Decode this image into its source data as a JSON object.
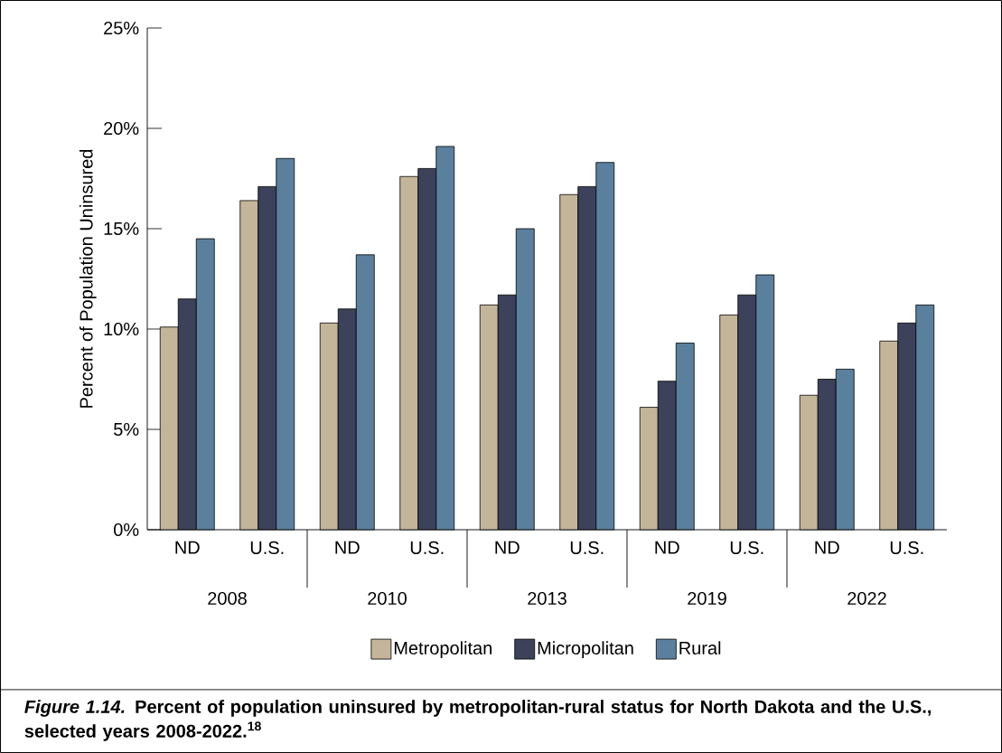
{
  "chart_data": {
    "type": "bar",
    "ylabel": "Percent of Population Uninsured",
    "categories": [
      "ND",
      "U.S.",
      "ND",
      "U.S.",
      "ND",
      "U.S.",
      "ND",
      "U.S.",
      "ND",
      "U.S."
    ],
    "series": [
      {
        "name": "Metropolitan",
        "color": "#c4b59a",
        "values": [
          10.1,
          16.4,
          10.3,
          17.6,
          11.2,
          16.7,
          6.1,
          10.7,
          6.7,
          9.4
        ]
      },
      {
        "name": "Micropolitan",
        "color": "#3b4259",
        "values": [
          11.5,
          17.1,
          11.0,
          18.0,
          11.7,
          17.1,
          7.4,
          11.7,
          7.5,
          10.3
        ]
      },
      {
        "name": "Rural",
        "color": "#5a809e",
        "values": [
          14.5,
          18.5,
          13.7,
          19.1,
          15.0,
          18.3,
          9.3,
          12.7,
          8.0,
          11.2
        ]
      }
    ],
    "ylim": [
      0,
      25
    ],
    "yticks": [
      {
        "value": 0,
        "label": "0%"
      },
      {
        "value": 5,
        "label": "5%"
      },
      {
        "value": 10,
        "label": "10%"
      },
      {
        "value": 15,
        "label": "15%"
      },
      {
        "value": 20,
        "label": "20%"
      },
      {
        "value": 25,
        "label": "25%"
      }
    ],
    "legend": "bottom",
    "grid": false,
    "annotations": [
      "2008",
      "2010",
      "2013",
      "2019",
      "2022",
      "*Figure 1.14.* Percent of population uninsured by metropolitan-rural status for North Dakota and the U.S., selected years 2008-2022.$^{18}$"
    ]
  }
}
